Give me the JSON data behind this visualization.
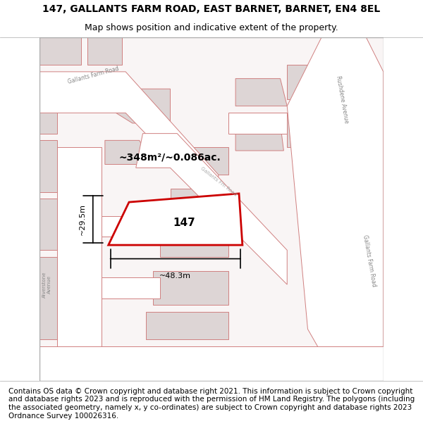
{
  "title": "147, GALLANTS FARM ROAD, EAST BARNET, BARNET, EN4 8EL",
  "subtitle": "Map shows position and indicative extent of the property.",
  "footer": "Contains OS data © Crown copyright and database right 2021. This information is subject to Crown copyright and database rights 2023 and is reproduced with the permission of HM Land Registry. The polygons (including the associated geometry, namely x, y co-ordinates) are subject to Crown copyright and database rights 2023 Ordnance Survey 100026316.",
  "bg_color": "#f5f0f0",
  "map_bg": "#f9f5f5",
  "road_fill": "#ffffff",
  "road_stroke": "#e8b0b0",
  "block_fill": "#e0d8d8",
  "block_stroke": "#e8b0b0",
  "plot_fill": "white",
  "plot_stroke": "#cc0000",
  "plot_label": "147",
  "area_text": "~348m²/~0.086ac.",
  "dim_width": "~48.3m",
  "dim_height": "~29.5m",
  "title_fontsize": 10,
  "subtitle_fontsize": 9,
  "footer_fontsize": 7.5
}
